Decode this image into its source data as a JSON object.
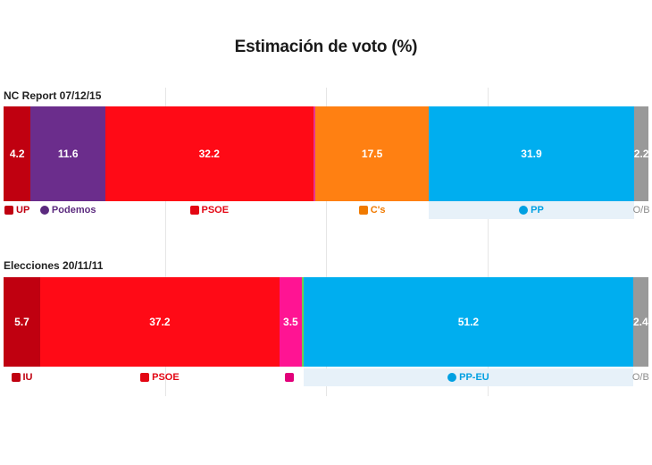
{
  "title": "Estimación de voto (%)",
  "chart_data": {
    "type": "bar",
    "title": "Estimación de voto (%)",
    "orientation": "horizontal-stacked-100",
    "xlim": [
      0,
      100
    ],
    "grid": true,
    "bars": [
      {
        "label": "NC Report 07/12/15",
        "segments": [
          {
            "party": "UP",
            "value": 4.2,
            "label": "4.2",
            "color": "#c00010",
            "icon": "up-logo-icon",
            "label_color": "#c00010"
          },
          {
            "party": "Podemos",
            "value": 11.6,
            "label": "11.6",
            "color": "#6b2d8c",
            "icon": "podemos-logo-icon",
            "label_color": "#5b2a7e"
          },
          {
            "party": "PSOE",
            "value": 32.2,
            "label": "32.2",
            "color": "#ff0a16",
            "icon": "psoe-logo-icon",
            "label_color": "#e30613"
          },
          {
            "party": "",
            "value": 0.4,
            "label": "",
            "color": "#e8358f",
            "icon": "",
            "label_color": ""
          },
          {
            "party": "C's",
            "value": 17.5,
            "label": "17.5",
            "color": "#ff8012",
            "icon": "cs-logo-icon",
            "label_color": "#f07a00"
          },
          {
            "party": "PP",
            "value": 31.9,
            "label": "31.9",
            "color": "#00aeef",
            "icon": "pp-logo-icon",
            "label_color": "#00a0e2",
            "label_bg": true
          },
          {
            "party": "O/B",
            "value": 2.2,
            "label": "2.2",
            "color": "#999999",
            "icon": "",
            "label_color": "#8c8c8c"
          }
        ]
      },
      {
        "label": "Elecciones 20/11/11",
        "segments": [
          {
            "party": "IU",
            "value": 5.7,
            "label": "5.7",
            "color": "#c00010",
            "icon": "iu-logo-icon",
            "label_color": "#c00010"
          },
          {
            "party": "PSOE",
            "value": 37.2,
            "label": "37.2",
            "color": "#ff0a16",
            "icon": "psoe-logo-icon",
            "label_color": "#e30613"
          },
          {
            "party": "",
            "value": 3.5,
            "label": "3.5",
            "color": "#ff1493",
            "icon": "upyd-logo-icon",
            "label_color": "#e2007a"
          },
          {
            "party": "",
            "value": 0.3,
            "label": "",
            "color": "#6fcf4f",
            "icon": "",
            "label_color": ""
          },
          {
            "party": "PP-EU",
            "value": 51.2,
            "label": "51.2",
            "color": "#00aeef",
            "icon": "pp-logo-icon",
            "label_color": "#00a0e2",
            "label_bg": true
          },
          {
            "party": "O/B",
            "value": 2.4,
            "label": "2.4",
            "color": "#999999",
            "icon": "",
            "label_color": "#8c8c8c"
          }
        ]
      }
    ]
  }
}
